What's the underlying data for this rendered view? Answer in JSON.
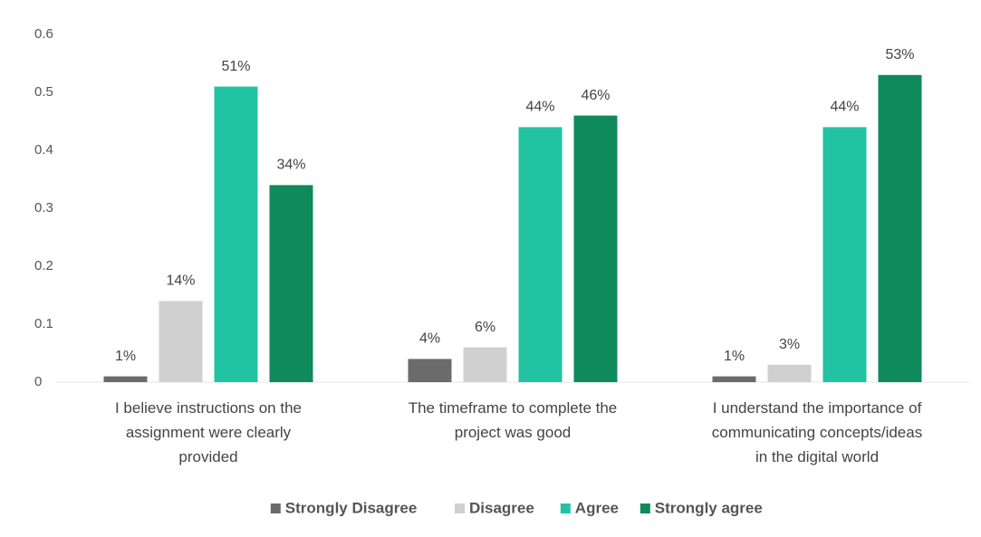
{
  "chart_data": {
    "type": "bar",
    "categories": [
      "I believe instructions on the assignment were clearly provided",
      "The timeframe to complete the project was good",
      "I understand the importance of communicating concepts/ideas in the digital world"
    ],
    "series": [
      {
        "name": "Strongly Disagree",
        "color": "#6b6b6b",
        "values": [
          0.01,
          0.04,
          0.01
        ],
        "value_labels": [
          "1%",
          "4%",
          "1%"
        ]
      },
      {
        "name": "Disagree",
        "color": "#d0d0d0",
        "values": [
          0.14,
          0.06,
          0.03
        ],
        "value_labels": [
          "14%",
          "6%",
          "3%"
        ]
      },
      {
        "name": "Agree",
        "color": "#22c3a3",
        "values": [
          0.51,
          0.44,
          0.44
        ],
        "value_labels": [
          "51%",
          "44%",
          "44%"
        ]
      },
      {
        "name": "Strongly agree",
        "color": "#0f8a5c",
        "values": [
          0.34,
          0.46,
          0.53
        ],
        "value_labels": [
          "34%",
          "46%",
          "53%"
        ]
      }
    ],
    "ylim": [
      0,
      0.6
    ],
    "yticks": [
      0,
      0.1,
      0.2,
      0.3,
      0.4,
      0.5,
      0.6
    ],
    "grid": false,
    "legend": "bottom"
  }
}
